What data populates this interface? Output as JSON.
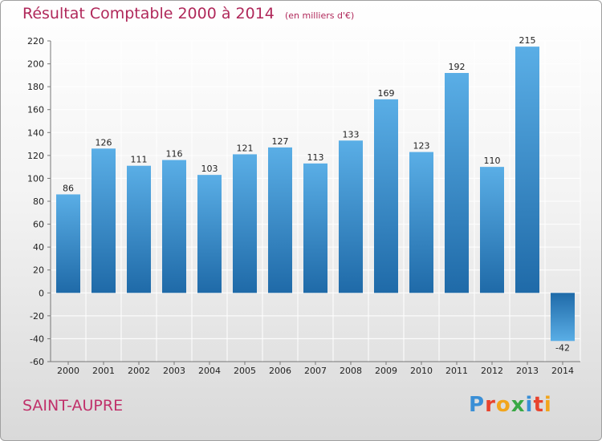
{
  "header": {
    "title": "Résultat Comptable 2000 à 2014",
    "unit": "(en milliers d'€)"
  },
  "footer": {
    "commune": "SAINT-AUPRE",
    "logo_letters": [
      "P",
      "r",
      "o",
      "x",
      "i",
      "t",
      "i"
    ],
    "logo_colors": [
      "#3a8fd6",
      "#e8432e",
      "#f2a51c",
      "#39a845",
      "#3a8fd6",
      "#e8432e",
      "#f2a51c"
    ]
  },
  "colors": {
    "bar_light": "#5aaee6",
    "bar_dark": "#1f6aa8",
    "title": "#b0285a",
    "grid": "#ffffff",
    "axis_text": "#222222"
  },
  "chart_data": {
    "type": "bar",
    "title": "Résultat Comptable 2000 à 2014",
    "subtitle": "(en milliers d'€)",
    "xlabel": "",
    "ylabel": "",
    "categories": [
      "2000",
      "2001",
      "2002",
      "2003",
      "2004",
      "2005",
      "2006",
      "2007",
      "2008",
      "2009",
      "2010",
      "2011",
      "2012",
      "2013",
      "2014"
    ],
    "values": [
      86,
      126,
      111,
      116,
      103,
      121,
      127,
      113,
      133,
      169,
      123,
      192,
      110,
      215,
      -42
    ],
    "labels": [
      "86",
      "126",
      "111",
      "116",
      "103",
      "121",
      "127",
      "113",
      "133",
      "169",
      "123",
      "192",
      "110",
      "215",
      "-42"
    ],
    "ylim": [
      -60,
      220
    ],
    "yticks": [
      -60,
      -40,
      -20,
      0,
      20,
      40,
      60,
      80,
      100,
      120,
      140,
      160,
      180,
      200,
      220
    ],
    "ytick_labels": [
      "-60",
      "-40",
      "-20",
      "0",
      "20",
      "40",
      "60",
      "80",
      "100",
      "120",
      "140",
      "160",
      "180",
      "200",
      "220"
    ],
    "grid": true,
    "legend": "none"
  }
}
